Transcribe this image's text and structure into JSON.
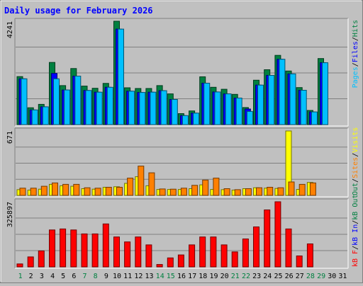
{
  "chart_data": {
    "type": "bar",
    "title": "Daily usage for February 2026",
    "x": [
      "1",
      "2",
      "3",
      "4",
      "5",
      "6",
      "7",
      "8",
      "9",
      "10",
      "11",
      "12",
      "13",
      "14",
      "15",
      "16",
      "17",
      "18",
      "19",
      "20",
      "21",
      "22",
      "23",
      "24",
      "25",
      "26",
      "27",
      "28",
      "29",
      "30",
      "31"
    ],
    "weekend_days": [
      "1",
      "7",
      "8",
      "14",
      "15",
      "21",
      "22",
      "28",
      "29"
    ],
    "panels": [
      {
        "id": "hits-files-pages",
        "ymax": 4241,
        "ymax_label": "4241",
        "legend": [
          "Pages",
          "/",
          "Files",
          "/",
          "Hits"
        ],
        "series": [
          {
            "name": "Hits",
            "color": "#008040",
            "values": [
              1970,
              690,
              830,
              2550,
              1600,
              2300,
              1580,
              1490,
              1690,
              4241,
              1510,
              1480,
              1480,
              1600,
              1260,
              450,
              560,
              1960,
              1530,
              1450,
              1240,
              700,
              1820,
              2250,
              2840,
              2200,
              1520,
              580,
              2710,
              0,
              0
            ]
          },
          {
            "name": "Files",
            "color": "#0000ff",
            "values": [
              1880,
              600,
              730,
              2100,
              1420,
              1990,
              1400,
              1330,
              1530,
              3920,
              1370,
              1320,
              1330,
              1390,
              1030,
              370,
              470,
              1700,
              1340,
              1260,
              1090,
              640,
              1620,
              2020,
              2680,
              2080,
              1410,
              520,
              2540,
              0,
              0
            ]
          },
          {
            "name": "Pages",
            "color": "#00c0ff",
            "values": [
              1880,
              600,
              730,
              1880,
              1420,
              1990,
              1400,
              1330,
              1530,
              3920,
              1370,
              1320,
              1330,
              1390,
              1030,
              370,
              470,
              1700,
              1340,
              1260,
              1090,
              540,
              1620,
              2020,
              2680,
              2080,
              1410,
              520,
              2540,
              0,
              0
            ]
          }
        ]
      },
      {
        "id": "visits-sites",
        "ymax": 671,
        "ymax_label": "671",
        "legend": [
          "Visits",
          "/",
          "Sites",
          "/",
          "Out"
        ],
        "series": [
          {
            "name": "Visits",
            "color": "#ffff00",
            "values": [
              60,
              55,
              65,
              115,
              100,
              95,
              70,
              65,
              85,
              90,
              125,
              195,
              100,
              62,
              62,
              62,
              70,
              110,
              62,
              60,
              55,
              70,
              80,
              75,
              72,
              671,
              63,
              135,
              0,
              0,
              0
            ]
          },
          {
            "name": "Sites",
            "color": "#ff8000",
            "values": [
              75,
              75,
              95,
              130,
              115,
              115,
              80,
              75,
              85,
              85,
              180,
              305,
              235,
              67,
              65,
              75,
              105,
              160,
              180,
              70,
              60,
              70,
              80,
              85,
              80,
              140,
              115,
              130,
              0,
              0,
              0
            ]
          }
        ]
      },
      {
        "id": "kbytes",
        "ymax": 325897,
        "ymax_label": "325897",
        "legend": [
          "kB F",
          "/",
          "kB In",
          "/",
          "kB Out"
        ],
        "series": [
          {
            "name": "kB F",
            "color": "#ff0000",
            "values": [
              15000,
              50000,
              80000,
              185000,
              190000,
              185000,
              165000,
              165000,
              215000,
              150000,
              125000,
              150000,
              110000,
              12000,
              45000,
              60000,
              110000,
              150000,
              150000,
              110000,
              75000,
              140000,
              200000,
              285000,
              325897,
              190000,
              55000,
              115000,
              0,
              0,
              0
            ]
          }
        ]
      }
    ]
  }
}
